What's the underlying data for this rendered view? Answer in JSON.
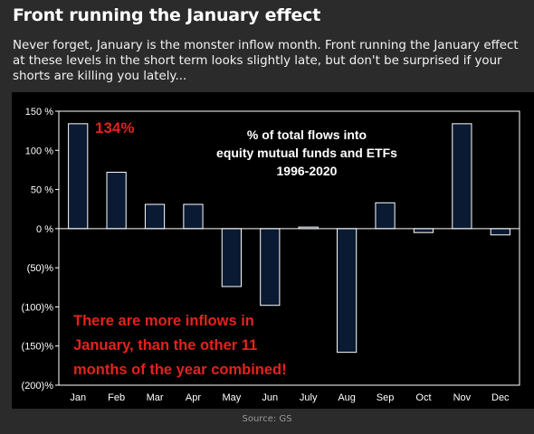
{
  "headline": "Front running the January effect",
  "summary": "Never forget, January is the monster inflow month. Front running the January effect at these levels in the short term looks slightly late, but don't be surprised if your shorts are killing you lately...",
  "source": "Source: GS",
  "colors": {
    "bar_fill": "#0b1a33",
    "bar_stroke": "#ffffff",
    "highlight": "#e3231c"
  },
  "chart_data": {
    "type": "bar",
    "title_lines": [
      "% of total flows into",
      "equity mutual funds and ETFs",
      "1996-2020"
    ],
    "categories": [
      "Jan",
      "Feb",
      "Mar",
      "Apr",
      "May",
      "Jun",
      "July",
      "Aug",
      "Sep",
      "Oct",
      "Nov",
      "Dec"
    ],
    "values": [
      134,
      72,
      31,
      31,
      -74,
      -98,
      2,
      -158,
      33,
      -5,
      134,
      -8
    ],
    "ylim": [
      -200,
      150
    ],
    "yticks": [
      150,
      100,
      50,
      0,
      -50,
      -100,
      -150,
      -200
    ],
    "ytick_labels": [
      "150 %",
      "100 %",
      "50 %",
      "0 %",
      "(50)%",
      "(100)%",
      "(150)%",
      "(200)%"
    ],
    "callout": "134%",
    "note_lines": [
      "There are more inflows in",
      "January, than the other 11",
      "months of the year combined!"
    ],
    "legend": "none",
    "grid": false
  }
}
